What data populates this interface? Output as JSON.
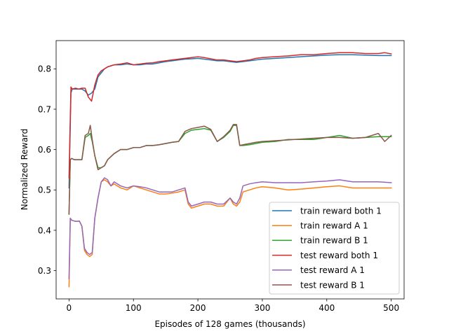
{
  "chart_data": {
    "type": "line",
    "title": "",
    "xlabel": "Episodes of 128 games (thousands)",
    "ylabel": "Normalized Reward",
    "xlim": [
      -20,
      520
    ],
    "ylim": [
      0.23,
      0.87
    ],
    "xticks": [
      0,
      100,
      200,
      300,
      400,
      500
    ],
    "yticks": [
      0.3,
      0.4,
      0.5,
      0.6,
      0.7,
      0.8
    ],
    "xtick_labels": [
      "0",
      "100",
      "200",
      "300",
      "400",
      "500"
    ],
    "ytick_labels": [
      "0.3",
      "0.4",
      "0.5",
      "0.6",
      "0.7",
      "0.8"
    ],
    "grid": false,
    "legend_position": "lower-right",
    "series": [
      {
        "name": "train reward both 1",
        "color": "#1f77b4",
        "x": [
          0,
          3,
          5,
          10,
          15,
          20,
          25,
          30,
          35,
          40,
          45,
          50,
          55,
          60,
          70,
          80,
          90,
          100,
          110,
          120,
          130,
          140,
          150,
          160,
          170,
          180,
          190,
          200,
          210,
          220,
          230,
          240,
          250,
          260,
          270,
          280,
          290,
          300,
          320,
          340,
          360,
          380,
          400,
          420,
          440,
          460,
          480,
          500
        ],
        "y": [
          0.505,
          0.74,
          0.75,
          0.75,
          0.75,
          0.75,
          0.745,
          0.735,
          0.74,
          0.75,
          0.78,
          0.79,
          0.8,
          0.805,
          0.81,
          0.81,
          0.812,
          0.81,
          0.81,
          0.812,
          0.812,
          0.815,
          0.818,
          0.82,
          0.822,
          0.824,
          0.825,
          0.826,
          0.824,
          0.822,
          0.82,
          0.82,
          0.818,
          0.816,
          0.818,
          0.82,
          0.822,
          0.824,
          0.826,
          0.828,
          0.83,
          0.832,
          0.834,
          0.835,
          0.835,
          0.834,
          0.833,
          0.833
        ]
      },
      {
        "name": "train reward A 1",
        "color": "#ff7f0e",
        "x": [
          0,
          2,
          4,
          8,
          12,
          16,
          20,
          24,
          28,
          32,
          36,
          40,
          45,
          50,
          55,
          60,
          65,
          70,
          80,
          90,
          100,
          110,
          120,
          130,
          140,
          150,
          160,
          170,
          180,
          185,
          190,
          200,
          210,
          220,
          230,
          240,
          250,
          255,
          260,
          265,
          270,
          280,
          290,
          300,
          320,
          340,
          360,
          380,
          400,
          420,
          440,
          460,
          480,
          500
        ],
        "y": [
          0.26,
          0.43,
          0.425,
          0.423,
          0.422,
          0.423,
          0.41,
          0.35,
          0.34,
          0.335,
          0.34,
          0.43,
          0.48,
          0.52,
          0.525,
          0.52,
          0.51,
          0.515,
          0.505,
          0.5,
          0.51,
          0.505,
          0.5,
          0.495,
          0.49,
          0.49,
          0.492,
          0.495,
          0.5,
          0.465,
          0.455,
          0.46,
          0.465,
          0.465,
          0.46,
          0.46,
          0.48,
          0.465,
          0.46,
          0.47,
          0.495,
          0.5,
          0.505,
          0.508,
          0.505,
          0.5,
          0.502,
          0.505,
          0.508,
          0.51,
          0.505,
          0.505,
          0.505,
          0.505
        ]
      },
      {
        "name": "train reward B 1",
        "color": "#2ca02c",
        "x": [
          0,
          2,
          4,
          8,
          12,
          16,
          20,
          25,
          30,
          33,
          36,
          40,
          45,
          50,
          55,
          60,
          70,
          80,
          90,
          100,
          110,
          120,
          130,
          140,
          150,
          160,
          170,
          180,
          190,
          200,
          210,
          220,
          230,
          240,
          250,
          255,
          260,
          265,
          270,
          280,
          290,
          300,
          320,
          340,
          360,
          380,
          400,
          420,
          440,
          460,
          480,
          500
        ],
        "y": [
          0.44,
          0.575,
          0.578,
          0.575,
          0.575,
          0.575,
          0.575,
          0.63,
          0.635,
          0.64,
          0.62,
          0.585,
          0.555,
          0.555,
          0.56,
          0.575,
          0.59,
          0.6,
          0.6,
          0.605,
          0.605,
          0.61,
          0.61,
          0.612,
          0.615,
          0.618,
          0.62,
          0.64,
          0.648,
          0.65,
          0.652,
          0.648,
          0.62,
          0.63,
          0.645,
          0.66,
          0.66,
          0.61,
          0.61,
          0.612,
          0.615,
          0.618,
          0.62,
          0.625,
          0.625,
          0.625,
          0.63,
          0.635,
          0.628,
          0.63,
          0.632,
          0.632
        ]
      },
      {
        "name": "test reward both 1",
        "color": "#d62728",
        "x": [
          0,
          3,
          5,
          10,
          15,
          20,
          25,
          30,
          35,
          40,
          45,
          50,
          55,
          60,
          70,
          80,
          90,
          100,
          110,
          120,
          130,
          140,
          150,
          160,
          170,
          180,
          190,
          200,
          210,
          220,
          230,
          240,
          250,
          260,
          270,
          280,
          290,
          300,
          320,
          340,
          360,
          380,
          400,
          420,
          440,
          460,
          480,
          490,
          500
        ],
        "y": [
          0.53,
          0.755,
          0.75,
          0.752,
          0.75,
          0.752,
          0.752,
          0.73,
          0.72,
          0.76,
          0.785,
          0.795,
          0.8,
          0.805,
          0.81,
          0.812,
          0.815,
          0.81,
          0.812,
          0.814,
          0.815,
          0.818,
          0.82,
          0.822,
          0.824,
          0.826,
          0.828,
          0.83,
          0.828,
          0.825,
          0.822,
          0.822,
          0.82,
          0.818,
          0.82,
          0.822,
          0.826,
          0.828,
          0.83,
          0.832,
          0.835,
          0.835,
          0.838,
          0.84,
          0.84,
          0.838,
          0.838,
          0.84,
          0.837
        ]
      },
      {
        "name": "test reward A 1",
        "color": "#9467bd",
        "x": [
          0,
          2,
          4,
          8,
          12,
          16,
          20,
          24,
          28,
          32,
          36,
          40,
          45,
          50,
          55,
          60,
          65,
          70,
          80,
          90,
          100,
          110,
          120,
          130,
          140,
          150,
          160,
          170,
          180,
          185,
          190,
          200,
          210,
          220,
          230,
          240,
          250,
          255,
          260,
          265,
          270,
          280,
          290,
          300,
          320,
          340,
          360,
          380,
          400,
          420,
          440,
          460,
          480,
          500
        ],
        "y": [
          0.28,
          0.43,
          0.425,
          0.423,
          0.422,
          0.423,
          0.41,
          0.355,
          0.345,
          0.34,
          0.345,
          0.43,
          0.48,
          0.52,
          0.53,
          0.525,
          0.51,
          0.52,
          0.51,
          0.505,
          0.51,
          0.508,
          0.505,
          0.5,
          0.495,
          0.495,
          0.495,
          0.5,
          0.505,
          0.47,
          0.46,
          0.465,
          0.47,
          0.47,
          0.465,
          0.465,
          0.48,
          0.47,
          0.465,
          0.48,
          0.51,
          0.515,
          0.518,
          0.52,
          0.518,
          0.518,
          0.518,
          0.52,
          0.522,
          0.525,
          0.52,
          0.52,
          0.52,
          0.518
        ]
      },
      {
        "name": "test reward B 1",
        "color": "#8c564b",
        "x": [
          0,
          2,
          4,
          8,
          12,
          16,
          20,
          25,
          30,
          33,
          36,
          40,
          45,
          50,
          55,
          60,
          70,
          80,
          90,
          100,
          110,
          120,
          130,
          140,
          150,
          160,
          170,
          180,
          190,
          200,
          210,
          220,
          230,
          240,
          250,
          255,
          260,
          265,
          270,
          280,
          290,
          300,
          320,
          340,
          360,
          380,
          400,
          420,
          440,
          460,
          480,
          490,
          500
        ],
        "y": [
          0.44,
          0.575,
          0.578,
          0.575,
          0.575,
          0.575,
          0.575,
          0.635,
          0.64,
          0.66,
          0.625,
          0.585,
          0.55,
          0.555,
          0.56,
          0.575,
          0.59,
          0.6,
          0.6,
          0.605,
          0.605,
          0.61,
          0.61,
          0.612,
          0.615,
          0.618,
          0.62,
          0.645,
          0.652,
          0.655,
          0.658,
          0.65,
          0.62,
          0.632,
          0.648,
          0.662,
          0.662,
          0.61,
          0.612,
          0.615,
          0.618,
          0.62,
          0.622,
          0.624,
          0.626,
          0.628,
          0.63,
          0.63,
          0.628,
          0.63,
          0.64,
          0.62,
          0.635
        ]
      }
    ]
  }
}
